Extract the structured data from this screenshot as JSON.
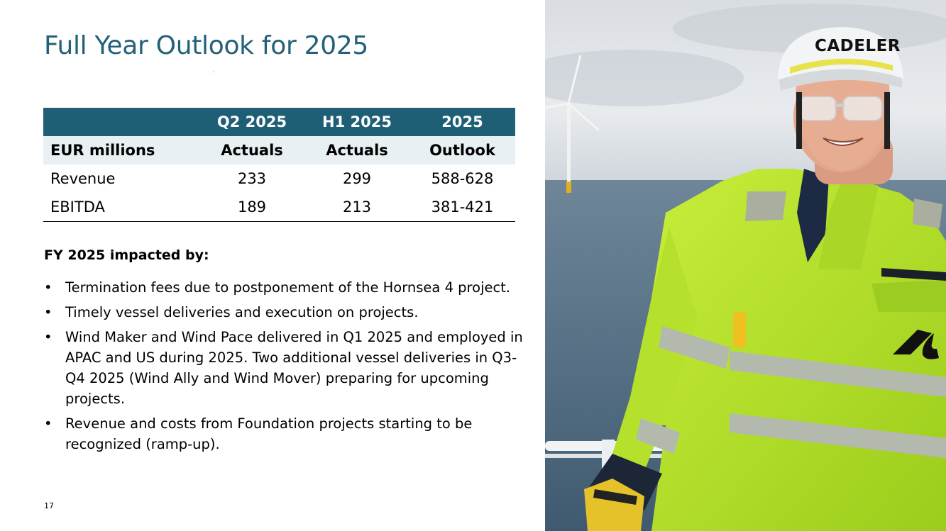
{
  "slide": {
    "title": "Full Year Outlook for 2025",
    "page_number": "17"
  },
  "table": {
    "header_row1": [
      "",
      "Q2 2025",
      "H1 2025",
      "2025"
    ],
    "header_row2": [
      "EUR millions",
      "Actuals",
      "Actuals",
      "Outlook"
    ],
    "rows": [
      {
        "label": "Revenue",
        "q2": "233",
        "h1": "299",
        "outlook": "588-628"
      },
      {
        "label": "EBITDA",
        "q2": "189",
        "h1": "213",
        "outlook": "381-421"
      }
    ]
  },
  "impacted": {
    "heading": "FY 2025 impacted by:",
    "bullet_char": "•",
    "items": [
      "Termination fees due to postponement of the Hornsea 4 project.",
      "Timely vessel deliveries and execution on projects.",
      "Wind Maker and Wind Pace delivered in Q1 2025 and employed in APAC and US during 2025. Two additional vessel deliveries in Q3-Q4 2025 (Wind Ally and Wind Mover) preparing for upcoming projects.",
      "Revenue and costs from Foundation projects starting to be recognized (ramp-up)."
    ]
  },
  "photo": {
    "logo": "CADELER"
  },
  "colors": {
    "title": "#23607a",
    "table_header": "#1e5f75",
    "table_subheader": "#e9f0f3",
    "jacket": "#b8e62a"
  }
}
